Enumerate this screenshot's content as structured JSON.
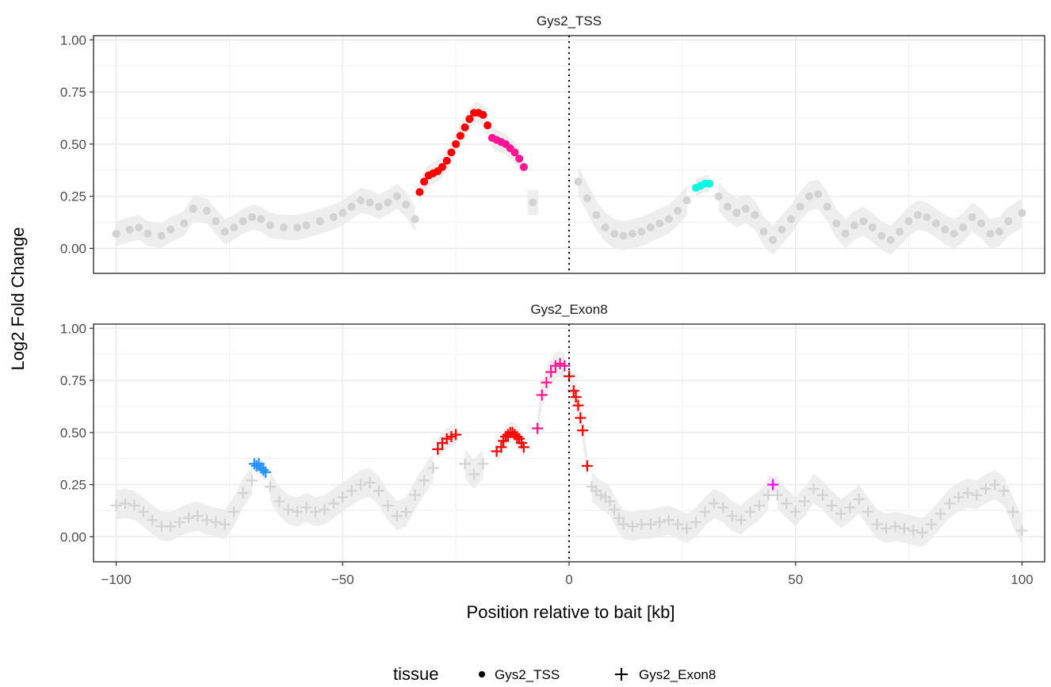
{
  "chart_data": {
    "type": "scatter",
    "xlabel": "Position relative to bait [kb]",
    "ylabel": "Log2 Fold Change",
    "xlim": [
      -105,
      105
    ],
    "ylim": [
      -0.12,
      1.02
    ],
    "x_ticks": [
      -100,
      -50,
      0,
      50,
      100
    ],
    "x_tick_labels": [
      "−100",
      "−50",
      "0",
      "50",
      "100"
    ],
    "y_ticks": [
      0,
      0.25,
      0.5,
      0.75,
      1.0
    ],
    "y_tick_labels": [
      "0.00",
      "0.25",
      "0.50",
      "0.75",
      "1.00"
    ],
    "grid": true,
    "reference_line_x": 0,
    "legend": {
      "title": "tissue",
      "position": "bottom",
      "entries": [
        {
          "label": "Gys2_TSS",
          "shape": "circle"
        },
        {
          "label": "Gys2_Exon8",
          "shape": "plus"
        }
      ]
    },
    "colors": {
      "background_points": "#d3d3d3",
      "ribbon": "#ebebeb",
      "red": "#ff0000",
      "pink": "#ff1493",
      "magenta": "#ff00ff",
      "cyan": "#00ffe0",
      "blue": "#1e90ff"
    },
    "panels": [
      {
        "title": "Gys2_TSS",
        "shape": "circle",
        "segments": [
          {
            "x": [
              -100,
              -97,
              -95,
              -93,
              -90,
              -88,
              -85,
              -83,
              -80,
              -78,
              -76,
              -74,
              -72,
              -70,
              -68,
              -66,
              -63,
              -60,
              -58,
              -55,
              -52,
              -50,
              -48,
              -46,
              -44,
              -42,
              -40,
              -38,
              -36,
              -34
            ],
            "y": [
              0.07,
              0.09,
              0.1,
              0.07,
              0.06,
              0.09,
              0.12,
              0.19,
              0.18,
              0.13,
              0.08,
              0.1,
              0.13,
              0.15,
              0.14,
              0.11,
              0.1,
              0.1,
              0.11,
              0.13,
              0.15,
              0.17,
              0.2,
              0.23,
              0.22,
              0.2,
              0.22,
              0.25,
              0.21,
              0.14
            ],
            "ribbon": 0.06
          },
          {
            "x": [
              -33,
              -32,
              -31,
              -30,
              -29,
              -28,
              -27,
              -26,
              -25,
              -24,
              -23,
              -22,
              -21,
              -20,
              -19,
              -18
            ],
            "y": [
              0.27,
              0.32,
              0.35,
              0.36,
              0.37,
              0.39,
              0.42,
              0.46,
              0.5,
              0.54,
              0.58,
              0.62,
              0.65,
              0.65,
              0.64,
              0.59
            ],
            "color_key": "red",
            "ribbon": 0.05
          },
          {
            "x": [
              -17,
              -16,
              -15,
              -14,
              -13,
              -12,
              -11,
              -10
            ],
            "y": [
              0.53,
              0.52,
              0.51,
              0.5,
              0.48,
              0.46,
              0.43,
              0.39
            ],
            "color_key": "pink",
            "ribbon": 0.05
          },
          {
            "x": [
              -8
            ],
            "y": [
              0.22
            ],
            "ribbon": 0.06
          },
          {
            "x": [
              2,
              4,
              6,
              8,
              10,
              12,
              14,
              16,
              18,
              20,
              22,
              24,
              26
            ],
            "y": [
              0.32,
              0.24,
              0.16,
              0.1,
              0.07,
              0.06,
              0.07,
              0.08,
              0.1,
              0.12,
              0.14,
              0.18,
              0.23
            ],
            "ribbon": 0.07
          },
          {
            "x": [
              28,
              29,
              30,
              31
            ],
            "y": [
              0.29,
              0.3,
              0.31,
              0.31
            ],
            "color_key": "cyan",
            "ribbon": 0.04
          },
          {
            "x": [
              33,
              35,
              37,
              39,
              41,
              43,
              45,
              47,
              49,
              51,
              53,
              55,
              57,
              59,
              61,
              63,
              65,
              67,
              69,
              71,
              73,
              75,
              77,
              79,
              81,
              83,
              85,
              87,
              89,
              91,
              93,
              95,
              97,
              100
            ],
            "y": [
              0.25,
              0.2,
              0.17,
              0.19,
              0.16,
              0.08,
              0.04,
              0.09,
              0.14,
              0.2,
              0.25,
              0.26,
              0.2,
              0.12,
              0.07,
              0.11,
              0.13,
              0.1,
              0.06,
              0.04,
              0.08,
              0.13,
              0.16,
              0.15,
              0.12,
              0.09,
              0.07,
              0.1,
              0.15,
              0.12,
              0.07,
              0.08,
              0.13,
              0.17
            ],
            "ribbon": 0.07
          }
        ]
      },
      {
        "title": "Gys2_Exon8",
        "shape": "plus",
        "segments": [
          {
            "x": [
              -100,
              -98,
              -96,
              -94,
              -92,
              -90,
              -88,
              -86,
              -84,
              -82,
              -80,
              -78,
              -76,
              -74,
              -72,
              -70
            ],
            "y": [
              0.15,
              0.16,
              0.15,
              0.12,
              0.08,
              0.05,
              0.05,
              0.07,
              0.09,
              0.1,
              0.08,
              0.07,
              0.06,
              0.12,
              0.21,
              0.27
            ],
            "ribbon": 0.07
          },
          {
            "x": [
              -69.5,
              -69,
              -68.5,
              -68,
              -67.5,
              -67
            ],
            "y": [
              0.35,
              0.34,
              0.35,
              0.33,
              0.32,
              0.31
            ],
            "color_key": "blue",
            "ribbon": 0.04
          },
          {
            "x": [
              -66,
              -64,
              -62,
              -60,
              -58,
              -56,
              -54,
              -52,
              -50,
              -48,
              -46,
              -44,
              -42,
              -40,
              -38,
              -36,
              -34,
              -32,
              -30
            ],
            "y": [
              0.24,
              0.17,
              0.13,
              0.12,
              0.14,
              0.12,
              0.13,
              0.16,
              0.19,
              0.22,
              0.25,
              0.26,
              0.22,
              0.15,
              0.1,
              0.12,
              0.2,
              0.27,
              0.33
            ],
            "ribbon": 0.07
          },
          {
            "x": [
              -29,
              -28,
              -27,
              -26,
              -25
            ],
            "y": [
              0.42,
              0.45,
              0.47,
              0.48,
              0.49
            ],
            "color_key": "red",
            "ribbon": 0.05
          },
          {
            "x": [
              -23,
              -21,
              -19
            ],
            "y": [
              0.35,
              0.3,
              0.35
            ],
            "ribbon": 0.07
          },
          {
            "x": [
              -16,
              -15,
              -14.5,
              -14,
              -13.5,
              -13,
              -12.5,
              -12,
              -11.5,
              -11,
              -10.5,
              -10
            ],
            "y": [
              0.41,
              0.43,
              0.46,
              0.48,
              0.49,
              0.5,
              0.5,
              0.49,
              0.48,
              0.47,
              0.45,
              0.43
            ],
            "color_key": "red",
            "ribbon": 0.05
          },
          {
            "x": [
              -7,
              -6,
              -5,
              -4,
              -3,
              -2,
              -1
            ],
            "y": [
              0.52,
              0.68,
              0.74,
              0.79,
              0.82,
              0.83,
              0.82
            ],
            "color_key": "pink",
            "ribbon": 0.06
          },
          {
            "x": [
              0,
              1,
              1.5,
              2,
              2.5,
              3,
              4
            ],
            "y": [
              0.77,
              0.7,
              0.67,
              0.63,
              0.57,
              0.51,
              0.34
            ],
            "color_key": "red",
            "ribbon": 0.06
          },
          {
            "x": [
              5,
              6,
              7,
              8,
              9,
              10,
              11,
              12,
              14,
              16,
              18,
              20,
              22,
              24,
              26,
              28,
              30,
              32,
              34,
              36,
              38,
              40,
              42,
              44
            ],
            "y": [
              0.24,
              0.22,
              0.2,
              0.19,
              0.17,
              0.13,
              0.09,
              0.06,
              0.05,
              0.06,
              0.06,
              0.07,
              0.08,
              0.06,
              0.04,
              0.07,
              0.12,
              0.16,
              0.14,
              0.1,
              0.08,
              0.12,
              0.15,
              0.2
            ],
            "ribbon": 0.07
          },
          {
            "x": [
              45
            ],
            "y": [
              0.25
            ],
            "color_key": "magenta",
            "ribbon": 0.04
          },
          {
            "x": [
              46,
              48,
              50,
              52,
              54,
              56,
              58,
              60,
              62,
              64,
              66,
              68,
              70,
              72,
              74,
              76,
              78,
              80,
              82,
              84,
              86,
              88,
              90,
              92,
              94,
              96,
              98,
              100
            ],
            "y": [
              0.2,
              0.16,
              0.12,
              0.17,
              0.23,
              0.2,
              0.15,
              0.11,
              0.14,
              0.18,
              0.12,
              0.06,
              0.04,
              0.05,
              0.04,
              0.03,
              0.02,
              0.06,
              0.11,
              0.16,
              0.19,
              0.21,
              0.2,
              0.23,
              0.25,
              0.22,
              0.12,
              0.03
            ],
            "ribbon": 0.07
          }
        ]
      }
    ]
  }
}
